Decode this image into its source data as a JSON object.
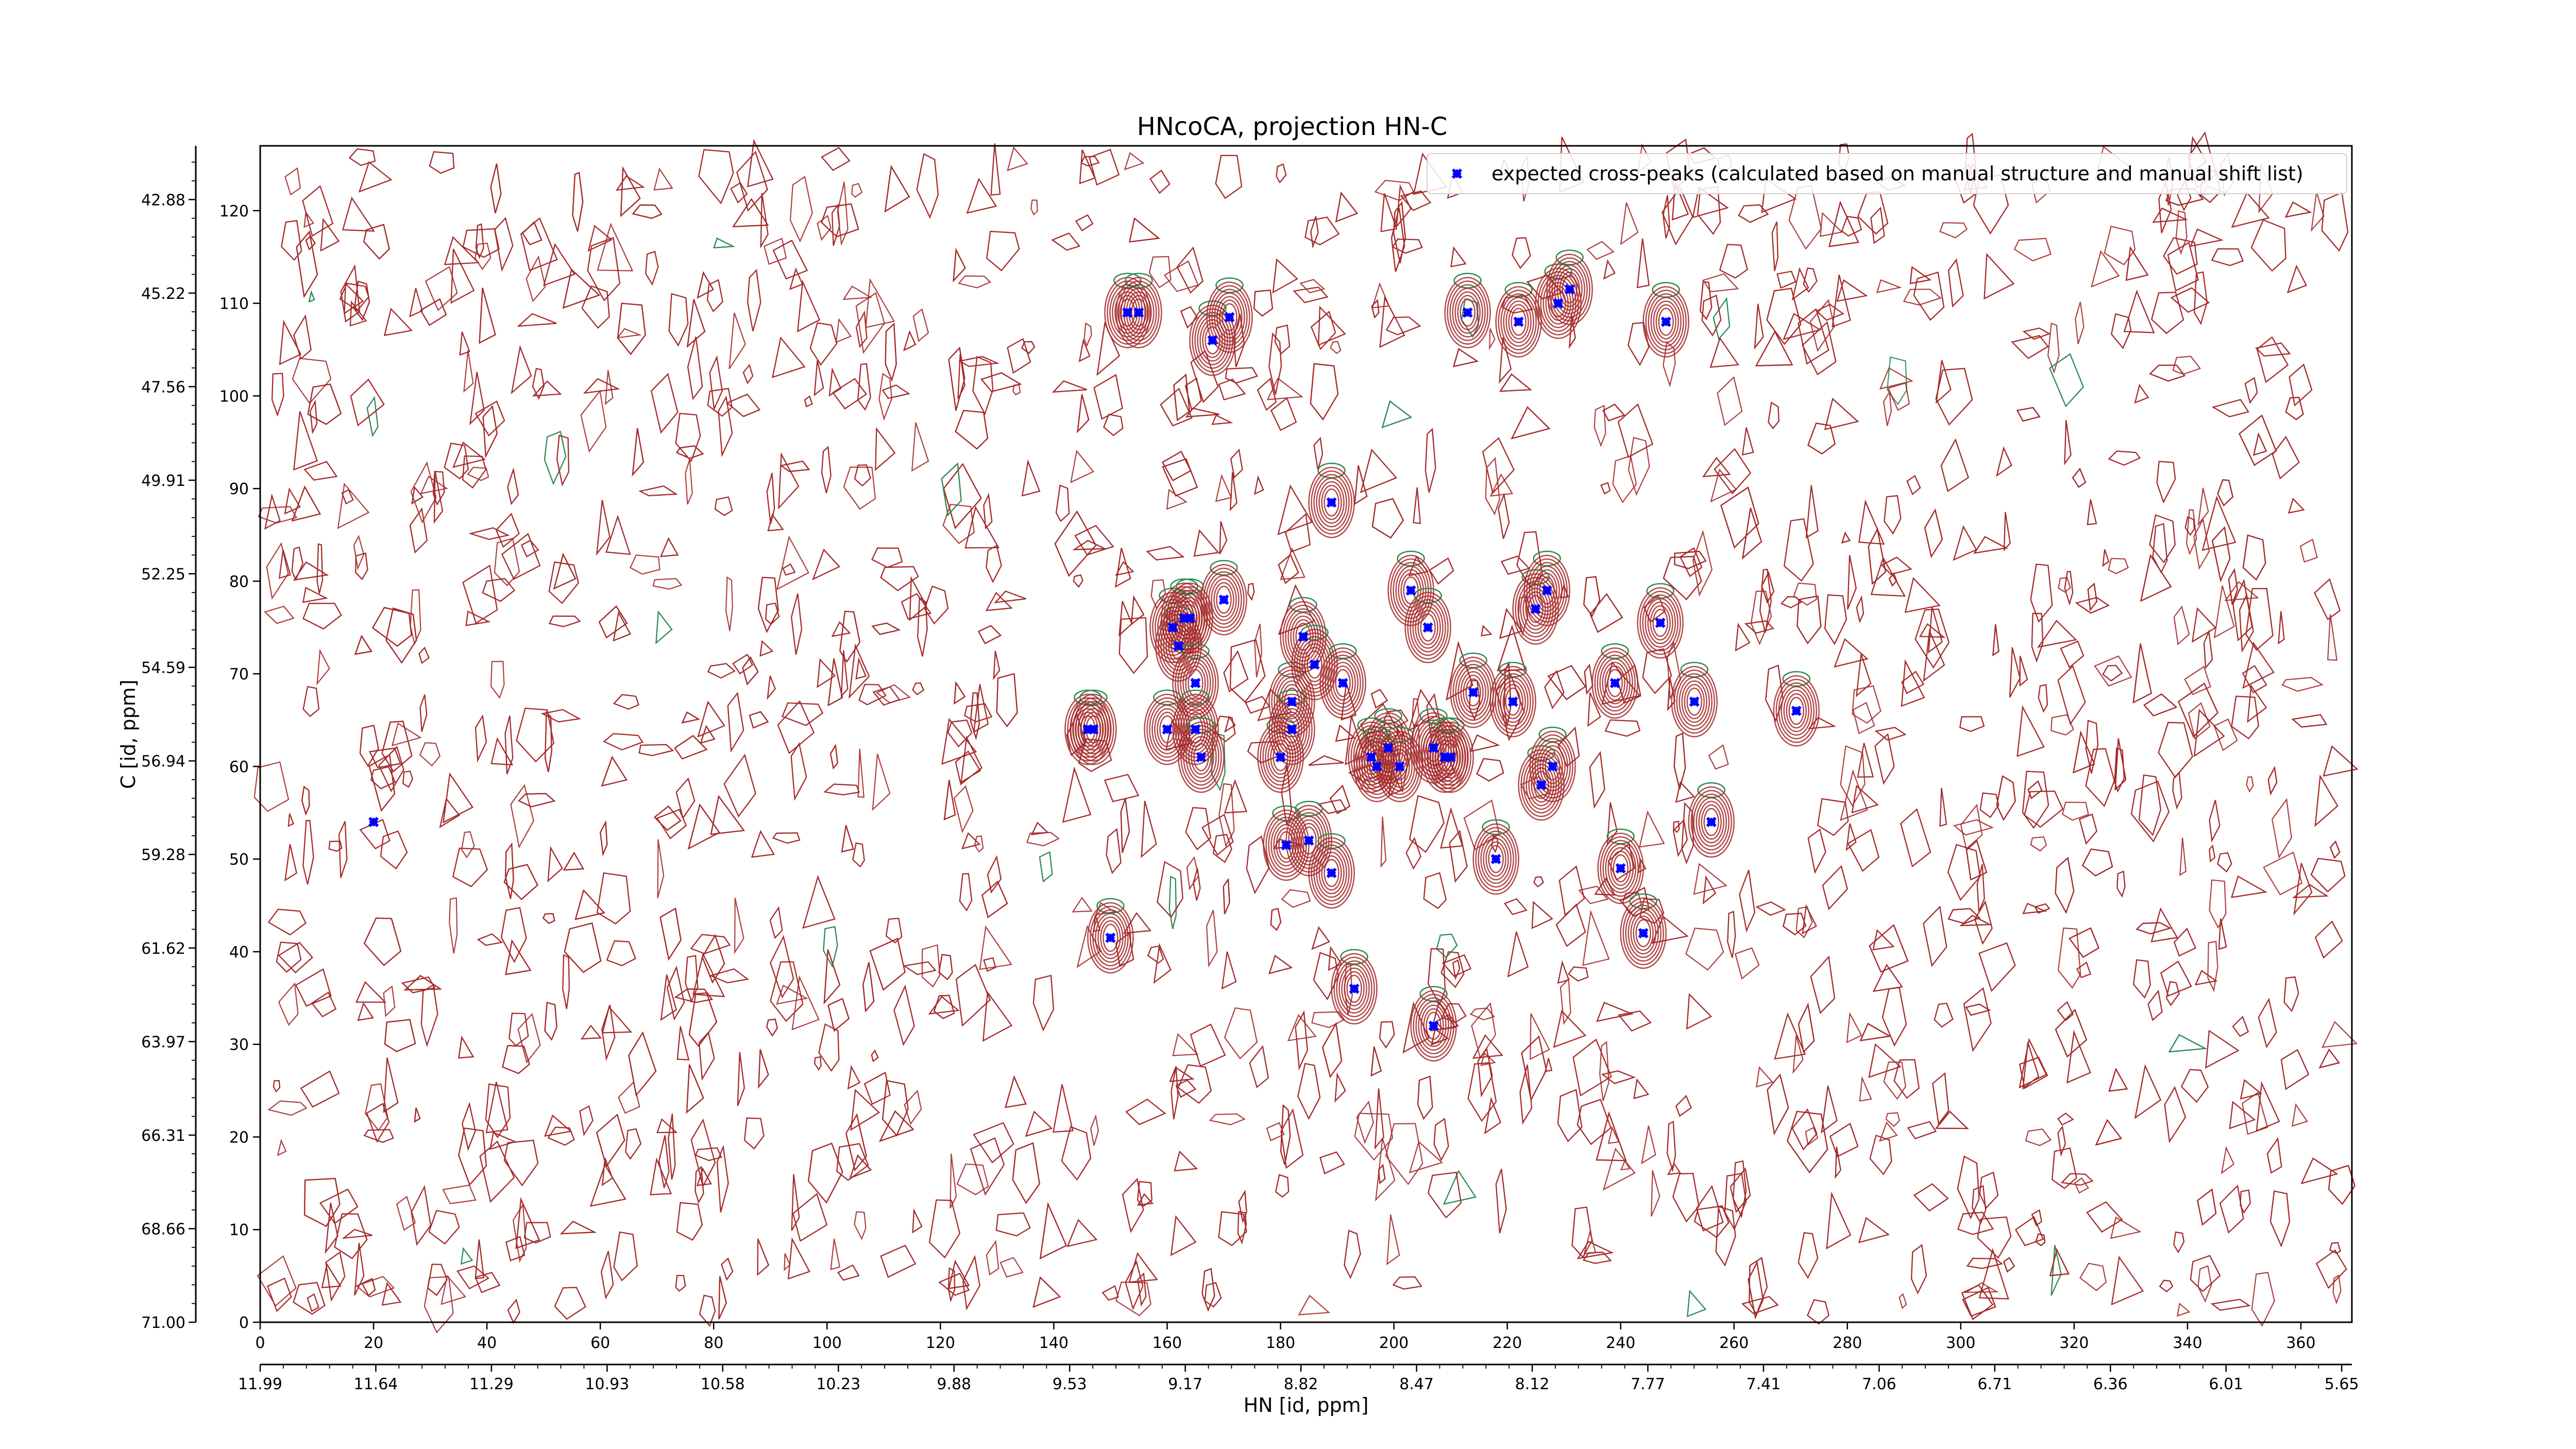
{
  "chart_data": {
    "type": "scatter",
    "title": "HNcoCA, projection HN-C",
    "xlabel": "HN [id, ppm]",
    "ylabel": "C [id, ppm]",
    "xlim": [
      0,
      369
    ],
    "ylim": [
      0,
      127
    ],
    "x_ticks": [
      0,
      20,
      40,
      60,
      80,
      100,
      120,
      140,
      160,
      180,
      200,
      220,
      240,
      260,
      280,
      300,
      320,
      340,
      360
    ],
    "y_ticks": [
      0,
      10,
      20,
      30,
      40,
      50,
      60,
      70,
      80,
      90,
      100,
      110,
      120
    ],
    "secondary_x_axis": {
      "label": "HN [id, ppm]",
      "ticks": [
        {
          "pos": 0,
          "label": "11.99"
        },
        {
          "pos": 20.4,
          "label": "11.64"
        },
        {
          "pos": 40.8,
          "label": "11.29"
        },
        {
          "pos": 61.2,
          "label": "10.93"
        },
        {
          "pos": 81.6,
          "label": "10.58"
        },
        {
          "pos": 102,
          "label": "10.23"
        },
        {
          "pos": 122.4,
          "label": "9.88"
        },
        {
          "pos": 142.8,
          "label": "9.53"
        },
        {
          "pos": 163.2,
          "label": "9.17"
        },
        {
          "pos": 183.6,
          "label": "8.82"
        },
        {
          "pos": 204,
          "label": "8.47"
        },
        {
          "pos": 224.4,
          "label": "8.12"
        },
        {
          "pos": 244.8,
          "label": "7.77"
        },
        {
          "pos": 265.2,
          "label": "7.41"
        },
        {
          "pos": 285.6,
          "label": "7.06"
        },
        {
          "pos": 306,
          "label": "6.71"
        },
        {
          "pos": 326.4,
          "label": "6.36"
        },
        {
          "pos": 346.8,
          "label": "6.01"
        },
        {
          "pos": 367.2,
          "label": "5.65"
        }
      ]
    },
    "secondary_y_axis": {
      "label": "C [id, ppm]",
      "ticks": [
        {
          "pos": 0,
          "label": "71.00"
        },
        {
          "pos": 10.1,
          "label": "68.66"
        },
        {
          "pos": 20.2,
          "label": "66.31"
        },
        {
          "pos": 30.3,
          "label": "63.97"
        },
        {
          "pos": 40.4,
          "label": "61.62"
        },
        {
          "pos": 50.5,
          "label": "59.28"
        },
        {
          "pos": 60.6,
          "label": "56.94"
        },
        {
          "pos": 70.7,
          "label": "54.59"
        },
        {
          "pos": 80.8,
          "label": "52.25"
        },
        {
          "pos": 90.9,
          "label": "49.91"
        },
        {
          "pos": 101,
          "label": "47.56"
        },
        {
          "pos": 111.1,
          "label": "45.22"
        },
        {
          "pos": 121.2,
          "label": "42.88"
        }
      ]
    },
    "legend": {
      "placement": "upper-right"
    },
    "series": [
      {
        "name": "expected cross-peaks (calculated based on manual structure and manual shift list)",
        "color": "#0000ff",
        "marker": "x",
        "points": [
          [
            20,
            54
          ],
          [
            146,
            64
          ],
          [
            147,
            64
          ],
          [
            150,
            41.5
          ],
          [
            153,
            109
          ],
          [
            155,
            109
          ],
          [
            160,
            64
          ],
          [
            161,
            75
          ],
          [
            162,
            73
          ],
          [
            163,
            76
          ],
          [
            164,
            76
          ],
          [
            165,
            69
          ],
          [
            165,
            64
          ],
          [
            166,
            61
          ],
          [
            168,
            106
          ],
          [
            170,
            78
          ],
          [
            171,
            108.5
          ],
          [
            180,
            61
          ],
          [
            181,
            51.5
          ],
          [
            182,
            67
          ],
          [
            182,
            64
          ],
          [
            184,
            74
          ],
          [
            185,
            52
          ],
          [
            186,
            71
          ],
          [
            189,
            48.5
          ],
          [
            189,
            88.5
          ],
          [
            191,
            69
          ],
          [
            193,
            36
          ],
          [
            196,
            61
          ],
          [
            197,
            60
          ],
          [
            199,
            62
          ],
          [
            201,
            60
          ],
          [
            203,
            79
          ],
          [
            206,
            75
          ],
          [
            207,
            32
          ],
          [
            207,
            62
          ],
          [
            209,
            61
          ],
          [
            210,
            61
          ],
          [
            213,
            109
          ],
          [
            214,
            68
          ],
          [
            218,
            50
          ],
          [
            221,
            67
          ],
          [
            222,
            108
          ],
          [
            225,
            77
          ],
          [
            226,
            58
          ],
          [
            227,
            79
          ],
          [
            228,
            60
          ],
          [
            229,
            110
          ],
          [
            231,
            111.5
          ],
          [
            239,
            69
          ],
          [
            240,
            49
          ],
          [
            244,
            42
          ],
          [
            247,
            75.5
          ],
          [
            248,
            108
          ],
          [
            253,
            67
          ],
          [
            256,
            54
          ],
          [
            271,
            66
          ]
        ]
      }
    ],
    "contours": {
      "positive_color": "#a52a2a",
      "negative_color": "#2e8b57"
    }
  }
}
